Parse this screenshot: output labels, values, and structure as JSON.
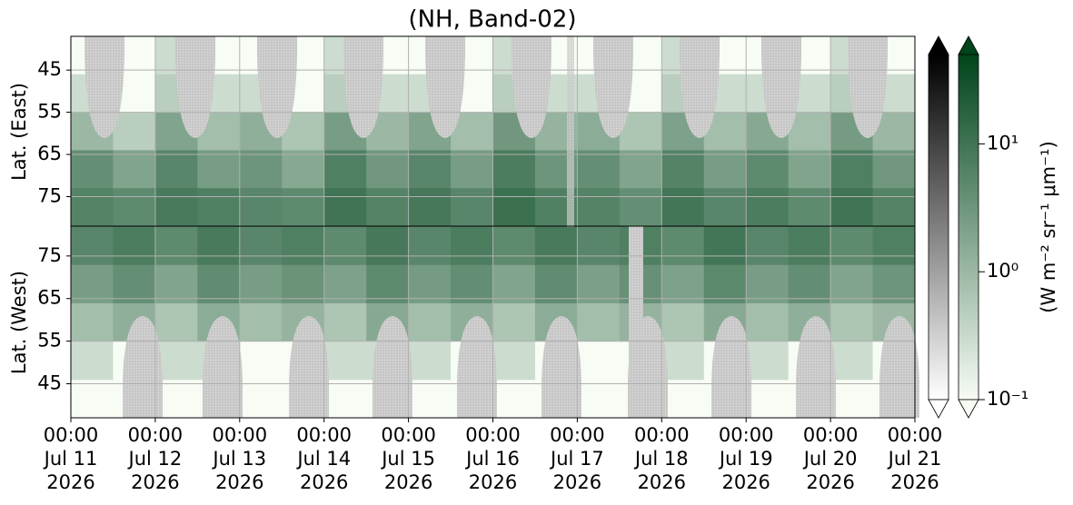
{
  "chart_data": [
    {
      "type": "heatmap",
      "title": "(NH, Band-02)",
      "ylabel": "Lat. (East)",
      "ylim": [
        82,
        37
      ],
      "yticks": [
        45,
        55,
        65,
        75
      ],
      "grid": true,
      "xbins": [
        "2026-07-11T00:00",
        "2026-07-11T12:00",
        "2026-07-12T00:00",
        "2026-07-12T12:00",
        "2026-07-13T00:00",
        "2026-07-13T12:00",
        "2026-07-14T00:00",
        "2026-07-14T12:00",
        "2026-07-15T00:00",
        "2026-07-15T12:00",
        "2026-07-16T00:00",
        "2026-07-16T12:00",
        "2026-07-17T00:00",
        "2026-07-17T12:00",
        "2026-07-18T00:00",
        "2026-07-18T12:00",
        "2026-07-19T00:00",
        "2026-07-19T12:00",
        "2026-07-20T00:00",
        "2026-07-20T12:00",
        "2026-07-21T00:00"
      ],
      "ybins": [
        37,
        46,
        55,
        64,
        73,
        82
      ],
      "values": [
        [
          0.1,
          0.1,
          0.2,
          0.1,
          0.1,
          0.1,
          0.2,
          0.1,
          0.1,
          0.1,
          0.2,
          0.1,
          0.1,
          0.1,
          0.2,
          0.1,
          0.1,
          0.1,
          0.2,
          0.1
        ],
        [
          0.2,
          0.1,
          0.3,
          0.2,
          0.2,
          0.1,
          0.3,
          0.2,
          0.2,
          0.1,
          0.3,
          0.2,
          0.2,
          0.1,
          0.3,
          0.2,
          0.2,
          0.2,
          0.3,
          0.2
        ],
        [
          0.6,
          0.3,
          1.2,
          0.5,
          0.8,
          0.4,
          1.5,
          0.6,
          1.2,
          0.5,
          1.8,
          0.7,
          0.9,
          0.4,
          1.3,
          0.5,
          1.0,
          0.5,
          1.6,
          0.6
        ],
        [
          2.5,
          1.2,
          3.5,
          1.5,
          2.0,
          1.0,
          4.5,
          1.8,
          3.5,
          1.5,
          5.0,
          2.0,
          2.5,
          1.2,
          4.0,
          1.5,
          3.0,
          1.2,
          4.5,
          1.8
        ],
        [
          4.0,
          3.0,
          5.5,
          4.5,
          3.5,
          3.0,
          7.0,
          4.0,
          6.0,
          3.5,
          8.0,
          4.5,
          4.0,
          2.5,
          6.5,
          3.5,
          5.0,
          3.0,
          7.0,
          4.0
        ]
      ],
      "colorbar": {
        "log": true,
        "lim": [
          0.1,
          50
        ],
        "colors": [
          "#f7fcf5",
          "#00441b"
        ],
        "night_colors": [
          "#ffffff",
          "#000000"
        ],
        "ticks": [
          {
            "value": 0.1,
            "label": "10⁻¹"
          },
          {
            "value": 1,
            "label": "10⁰"
          },
          {
            "value": 10,
            "label": "10¹"
          }
        ],
        "label": "(W m⁻² sr⁻¹ μm⁻¹)"
      }
    },
    {
      "type": "heatmap",
      "ylabel": "Lat. (West)",
      "ylim": [
        37,
        82
      ],
      "yticks": [
        45,
        55,
        65,
        75
      ],
      "grid": true,
      "xlim": [
        "2026-07-11T00:00",
        "2026-07-21T00:00"
      ],
      "xticks": [
        {
          "value": "2026-07-11T00:00",
          "label": [
            "00:00",
            "Jul 11",
            "2026"
          ]
        },
        {
          "value": "2026-07-12T00:00",
          "label": [
            "00:00",
            "Jul 12",
            "2026"
          ]
        },
        {
          "value": "2026-07-13T00:00",
          "label": [
            "00:00",
            "Jul 13",
            "2026"
          ]
        },
        {
          "value": "2026-07-14T00:00",
          "label": [
            "00:00",
            "Jul 14",
            "2026"
          ]
        },
        {
          "value": "2026-07-15T00:00",
          "label": [
            "00:00",
            "Jul 15",
            "2026"
          ]
        },
        {
          "value": "2026-07-16T00:00",
          "label": [
            "00:00",
            "Jul 16",
            "2026"
          ]
        },
        {
          "value": "2026-07-17T00:00",
          "label": [
            "00:00",
            "Jul 17",
            "2026"
          ]
        },
        {
          "value": "2026-07-18T00:00",
          "label": [
            "00:00",
            "Jul 18",
            "2026"
          ]
        },
        {
          "value": "2026-07-19T00:00",
          "label": [
            "00:00",
            "Jul 19",
            "2026"
          ]
        },
        {
          "value": "2026-07-20T00:00",
          "label": [
            "00:00",
            "Jul 20",
            "2026"
          ]
        },
        {
          "value": "2026-07-21T00:00",
          "label": [
            "00:00",
            "Jul 21",
            "2026"
          ]
        }
      ],
      "xbins": [
        "2026-07-11T00:00",
        "2026-07-11T12:00",
        "2026-07-12T00:00",
        "2026-07-12T12:00",
        "2026-07-13T00:00",
        "2026-07-13T12:00",
        "2026-07-14T00:00",
        "2026-07-14T12:00",
        "2026-07-15T00:00",
        "2026-07-15T12:00",
        "2026-07-16T00:00",
        "2026-07-16T12:00",
        "2026-07-17T00:00",
        "2026-07-17T12:00",
        "2026-07-18T00:00",
        "2026-07-18T12:00",
        "2026-07-19T00:00",
        "2026-07-19T12:00",
        "2026-07-20T00:00",
        "2026-07-20T12:00",
        "2026-07-21T00:00"
      ],
      "ybins": [
        37,
        46,
        55,
        64,
        73,
        82
      ],
      "values": [
        [
          0.1,
          0.1,
          0.1,
          0.1,
          0.1,
          0.1,
          0.1,
          0.1,
          0.1,
          0.1,
          0.1,
          0.1,
          0.1,
          0.1,
          0.1,
          0.1,
          0.1,
          0.1,
          0.1,
          0.1
        ],
        [
          0.2,
          0.1,
          0.2,
          0.2,
          0.1,
          0.1,
          0.2,
          0.2,
          0.2,
          0.1,
          0.2,
          0.1,
          0.1,
          0.1,
          0.2,
          0.1,
          0.2,
          0.1,
          0.2,
          0.1
        ],
        [
          0.5,
          0.8,
          0.4,
          0.9,
          0.5,
          0.7,
          0.4,
          1.0,
          0.5,
          0.8,
          0.4,
          0.9,
          0.5,
          0.7,
          0.4,
          1.0,
          0.5,
          0.8,
          0.4,
          0.6
        ],
        [
          1.5,
          2.5,
          1.2,
          2.8,
          1.5,
          2.2,
          1.3,
          3.0,
          1.6,
          2.6,
          1.2,
          2.8,
          1.4,
          2.4,
          1.3,
          3.2,
          1.5,
          2.6,
          1.2,
          2.0
        ],
        [
          3.5,
          5.0,
          3.0,
          5.5,
          3.5,
          4.5,
          3.0,
          6.0,
          3.5,
          5.0,
          3.0,
          5.5,
          3.5,
          4.5,
          3.0,
          6.5,
          3.5,
          5.0,
          3.0,
          4.5
        ]
      ]
    }
  ]
}
